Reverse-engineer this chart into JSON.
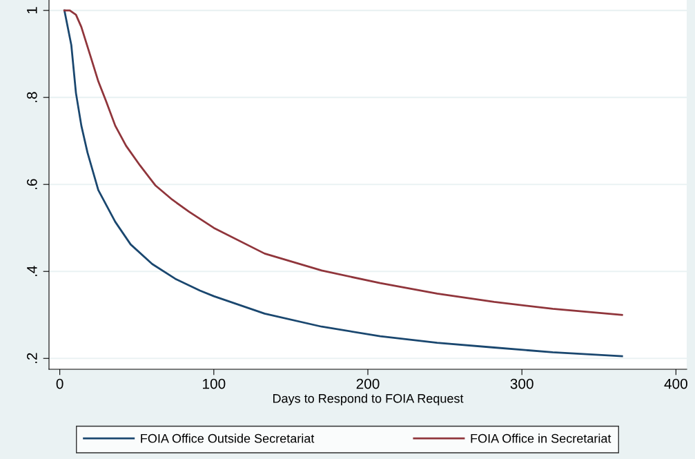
{
  "chart_data": {
    "type": "line",
    "xlabel": "Days to Respond to FOIA Request",
    "series": [
      {
        "name": "FOIA Office Outside Secretariat",
        "color": "#1a476f",
        "x": [
          3,
          7.5,
          10.5,
          14,
          18,
          25,
          36,
          46,
          60,
          75,
          91,
          100,
          133,
          170,
          208,
          245,
          282,
          320,
          365
        ],
        "values": [
          1.0,
          0.92,
          0.81,
          0.735,
          0.673,
          0.587,
          0.514,
          0.462,
          0.417,
          0.383,
          0.356,
          0.343,
          0.303,
          0.273,
          0.251,
          0.236,
          0.225,
          0.214,
          0.205
        ]
      },
      {
        "name": "FOIA Office in Secretariat",
        "color": "#90353b",
        "x": [
          3,
          6.5,
          10.5,
          14,
          20,
          25,
          30,
          36,
          43,
          52,
          62,
          73,
          84,
          100,
          133,
          170,
          208,
          245,
          282,
          320,
          365
        ],
        "values": [
          1.0,
          1.0,
          0.99,
          0.962,
          0.894,
          0.837,
          0.792,
          0.735,
          0.689,
          0.644,
          0.598,
          0.565,
          0.537,
          0.5,
          0.441,
          0.402,
          0.373,
          0.349,
          0.33,
          0.314,
          0.3
        ]
      }
    ],
    "xlim": [
      -7,
      407
    ],
    "ylim": [
      0.175,
      1.024
    ],
    "xticks": [
      0,
      100,
      200,
      300,
      400
    ],
    "yticks": [
      {
        "value": 0.2,
        "label": ".2"
      },
      {
        "value": 0.4,
        "label": ".4"
      },
      {
        "value": 0.6,
        "label": ".6"
      },
      {
        "value": 0.8,
        "label": ".8"
      },
      {
        "value": 1,
        "label": "1"
      }
    ],
    "grid": "y",
    "legend": "bottom",
    "marker": "none",
    "line_style": "solid"
  }
}
